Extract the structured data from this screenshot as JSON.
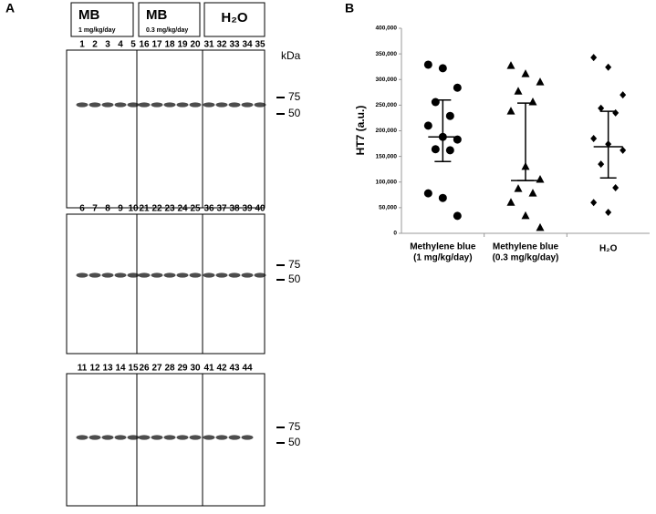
{
  "panel_a": {
    "label": "A",
    "groups": [
      {
        "title": "MB",
        "subtitle": "1 mg/kg/day"
      },
      {
        "title": "MB",
        "subtitle": "0.3 mg/kg/day"
      },
      {
        "title": "H₂O"
      }
    ],
    "blots": [
      {
        "lanes": [
          [
            "1",
            "2",
            "3",
            "4",
            "5"
          ],
          [
            "16",
            "17",
            "18",
            "19",
            "20"
          ],
          [
            "31",
            "32",
            "33",
            "34",
            "35"
          ]
        ],
        "marker_unit": "kDa",
        "markers": [
          75,
          50
        ]
      },
      {
        "lanes": [
          [
            "6",
            "7",
            "8",
            "9",
            "10"
          ],
          [
            "21",
            "22",
            "23",
            "24",
            "25"
          ],
          [
            "36",
            "37",
            "38",
            "39",
            "40"
          ]
        ],
        "markers": [
          75,
          50
        ]
      },
      {
        "lanes": [
          [
            "11",
            "12",
            "13",
            "14",
            "15"
          ],
          [
            "26",
            "27",
            "28",
            "29",
            "30"
          ],
          [
            "41",
            "42",
            "43",
            "44"
          ]
        ],
        "markers": [
          75,
          50
        ]
      }
    ]
  },
  "chart_data": {
    "type": "scatter",
    "label": "B",
    "y_label": "HT7 (a.u.)",
    "categories": [
      [
        "Methylene blue",
        "(1 mg/kg/day)"
      ],
      [
        "Methylene blue",
        "(0.3 mg/kg/day)"
      ],
      [
        "H₂O"
      ]
    ],
    "ylim": [
      0,
      400000
    ],
    "yticks": [
      0,
      {
        "value": 50000,
        "label": "50,000"
      },
      {
        "value": 100000,
        "label": "100,000"
      },
      {
        "value": 150000,
        "label": "150,000"
      },
      {
        "value": 200000,
        "label": "200,000"
      },
      {
        "value": 250000,
        "label": "250,000"
      },
      {
        "value": 300000,
        "label": "300,000"
      },
      {
        "value": 350000,
        "label": "350,000"
      },
      {
        "value": 400000,
        "label": "400,000"
      }
    ],
    "series": [
      {
        "marker": "circle",
        "color": "#000000",
        "values": [
          329000,
          322000,
          284000,
          256000,
          229000,
          210000,
          188000,
          183000,
          164000,
          162000,
          78000,
          69000,
          34000
        ],
        "center": 188000,
        "upper": 260000,
        "lower": 140000
      },
      {
        "marker": "triangle",
        "color": "#000000",
        "values": [
          327000,
          311000,
          295000,
          277000,
          256000,
          238000,
          130000,
          105000,
          87000,
          78000,
          60000,
          34000,
          11000
        ],
        "center": 103000,
        "upper": 254000,
        "lower": 103000
      },
      {
        "marker": "diamond",
        "color": "#000000",
        "values": [
          343000,
          324000,
          270000,
          244000,
          235000,
          185000,
          174000,
          162000,
          135000,
          89000,
          60000,
          41000
        ],
        "center": 169000,
        "upper": 238000,
        "lower": 108000
      }
    ]
  }
}
